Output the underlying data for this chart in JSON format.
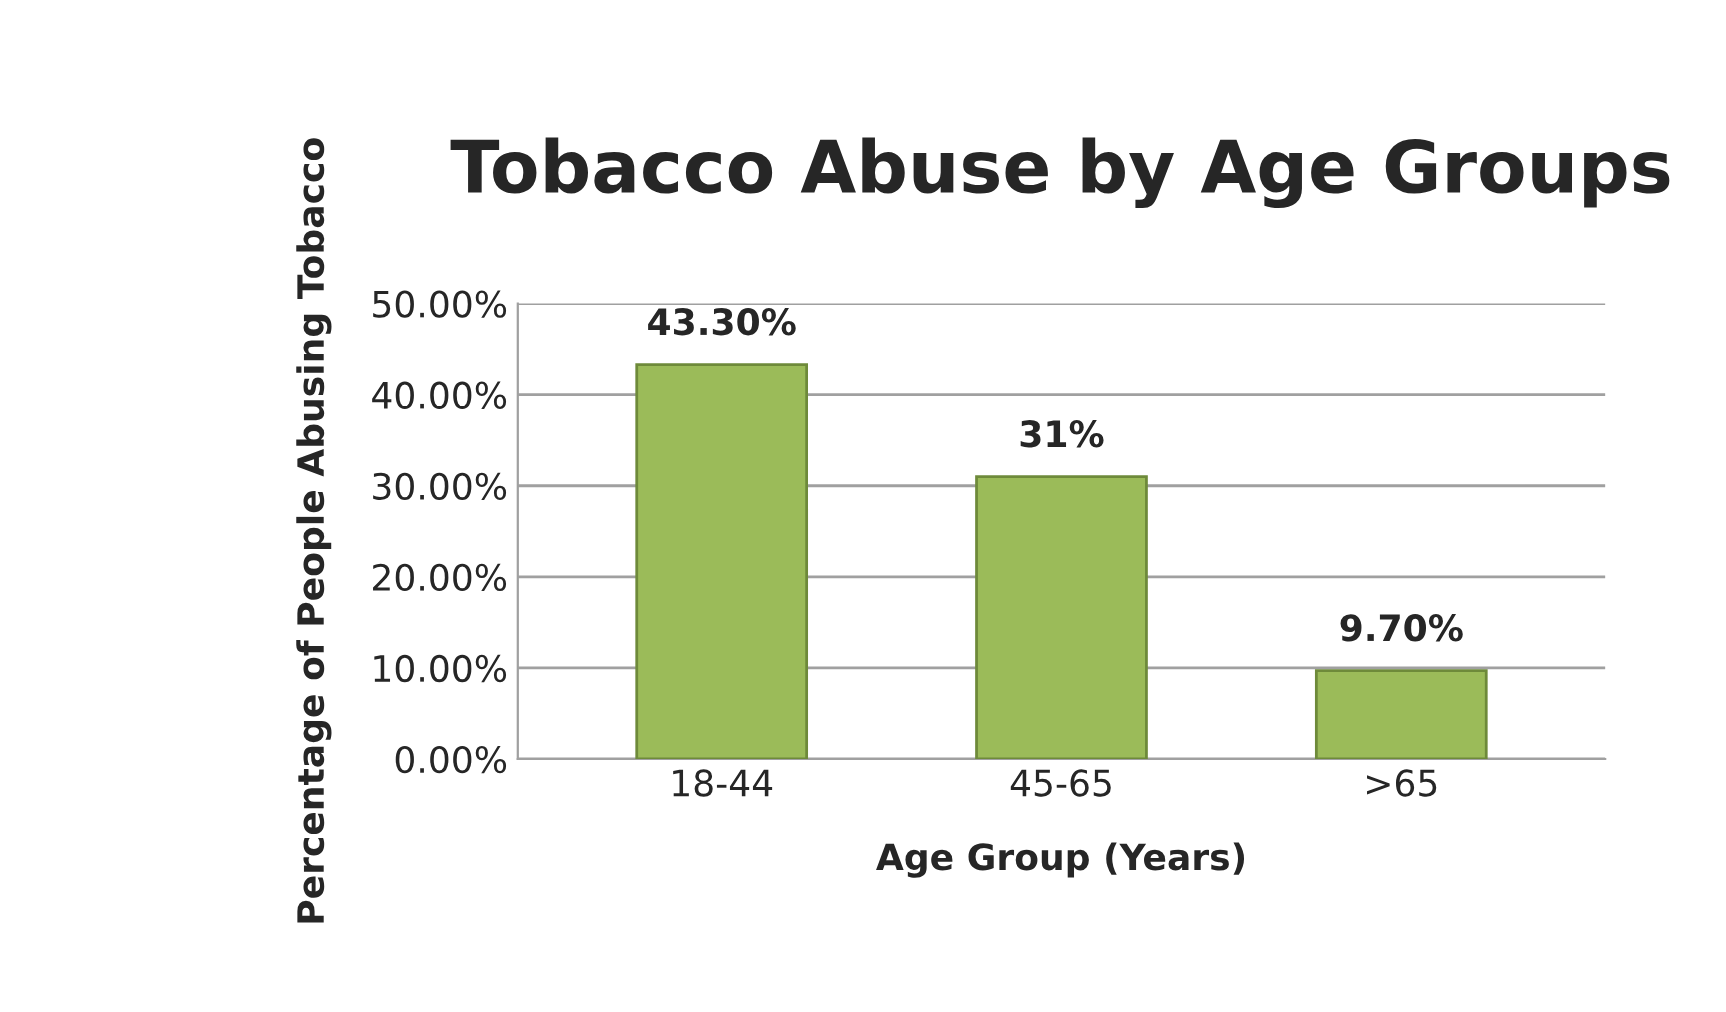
{
  "chart_data": {
    "type": "bar",
    "title": "Tobacco Abuse by Age Groups",
    "xlabel": "Age Group (Years)",
    "ylabel": "Percentage of People Abusing Tobacco",
    "categories": [
      "18-44",
      "45-65",
      ">65"
    ],
    "values": [
      43.3,
      31,
      9.7
    ],
    "value_labels": [
      "43.30%",
      "31%",
      "9.70%"
    ],
    "color": "#9bbb59",
    "ylim": [
      0,
      50
    ],
    "yticks": [
      {
        "value": 0,
        "label": "0.00%"
      },
      {
        "value": 10,
        "label": "10.00%"
      },
      {
        "value": 20,
        "label": "20.00%"
      },
      {
        "value": 30,
        "label": "30.00%"
      },
      {
        "value": 40,
        "label": "40.00%"
      },
      {
        "value": 50,
        "label": "50.00%"
      }
    ],
    "grid": "y"
  }
}
